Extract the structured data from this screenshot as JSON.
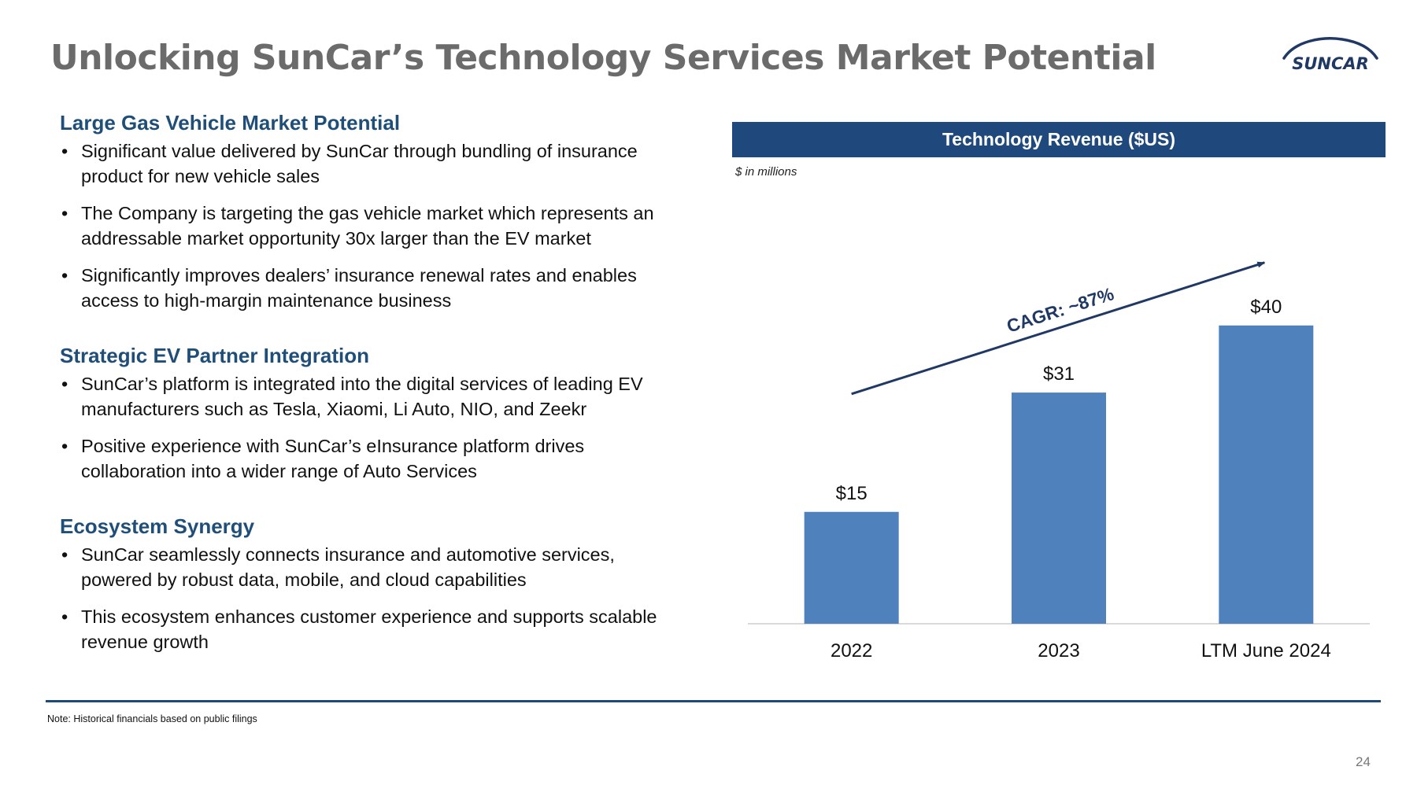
{
  "slide": {
    "title": "Unlocking SunCar’s Technology Services Market Potential",
    "logo_text": "SUNCAR",
    "page_number": "24",
    "footnote": "Note: Historical financials based on public filings"
  },
  "sections": [
    {
      "heading": "Large Gas Vehicle Market Potential",
      "bullets": [
        "Significant value delivered by SunCar through bundling of insurance product for new vehicle sales",
        "The Company is targeting the gas vehicle market which represents an addressable market opportunity 30x larger than the EV market",
        "Significantly improves dealers’ insurance renewal rates and enables access to high-margin maintenance business"
      ]
    },
    {
      "heading": "Strategic EV Partner Integration",
      "bullets": [
        "SunCar’s platform is integrated into the digital services of leading EV manufacturers such as Tesla, Xiaomi, Li Auto, NIO, and Zeekr",
        "Positive experience with SunCar’s eInsurance platform drives collaboration into a wider range of Auto Services"
      ]
    },
    {
      "heading": "Ecosystem Synergy",
      "bullets": [
        "SunCar seamlessly connects insurance and automotive services, powered by robust data, mobile, and cloud capabilities",
        "This ecosystem enhances customer experience and supports scalable revenue growth"
      ]
    }
  ],
  "chart_data": {
    "type": "bar",
    "title": "Technology Revenue ($US)",
    "subtitle": "$ in millions",
    "categories": [
      "2022",
      "2023",
      "LTM June 2024"
    ],
    "values": [
      15,
      31,
      40
    ],
    "data_labels": [
      "$15",
      "$31",
      "$40"
    ],
    "annotation": "CAGR: ~87%",
    "ylim": [
      0,
      52
    ],
    "grid": false,
    "legend": "none",
    "bar_color": "#4f81bd",
    "arrow_color": "#1f3864",
    "header_color": "#1f497d"
  }
}
